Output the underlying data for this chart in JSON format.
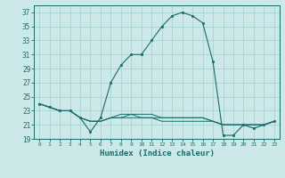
{
  "xlabel": "Humidex (Indice chaleur)",
  "bg_color": "#cce8e8",
  "grid_color": "#a8d4d4",
  "line_color": "#1a6b6b",
  "x_ticks": [
    0,
    1,
    2,
    3,
    4,
    5,
    6,
    7,
    8,
    9,
    10,
    11,
    12,
    13,
    14,
    15,
    16,
    17,
    18,
    19,
    20,
    21,
    22,
    23
  ],
  "ylim": [
    19,
    38
  ],
  "yticks": [
    19,
    21,
    23,
    25,
    27,
    29,
    31,
    33,
    35,
    37
  ],
  "series": [
    [
      24.0,
      23.5,
      23.0,
      23.0,
      22.0,
      20.0,
      22.0,
      27.0,
      29.5,
      31.0,
      31.0,
      33.0,
      35.0,
      36.5,
      37.0,
      36.5,
      35.5,
      30.0,
      19.5,
      19.5,
      21.0,
      20.5,
      21.0,
      21.5
    ],
    [
      24.0,
      23.5,
      23.0,
      23.0,
      22.0,
      21.5,
      21.5,
      22.0,
      22.5,
      22.5,
      22.0,
      22.0,
      21.5,
      21.5,
      21.5,
      21.5,
      21.5,
      21.5,
      21.0,
      21.0,
      21.0,
      21.0,
      21.0,
      21.5
    ],
    [
      24.0,
      23.5,
      23.0,
      23.0,
      22.0,
      21.5,
      21.5,
      22.0,
      22.0,
      22.0,
      22.0,
      22.0,
      22.0,
      22.0,
      22.0,
      22.0,
      22.0,
      21.5,
      21.0,
      21.0,
      21.0,
      21.0,
      21.0,
      21.5
    ],
    [
      24.0,
      23.5,
      23.0,
      23.0,
      22.0,
      21.5,
      21.5,
      22.0,
      22.0,
      22.5,
      22.5,
      22.5,
      22.0,
      22.0,
      22.0,
      22.0,
      22.0,
      21.5,
      21.0,
      21.0,
      21.0,
      21.0,
      21.0,
      21.5
    ]
  ]
}
